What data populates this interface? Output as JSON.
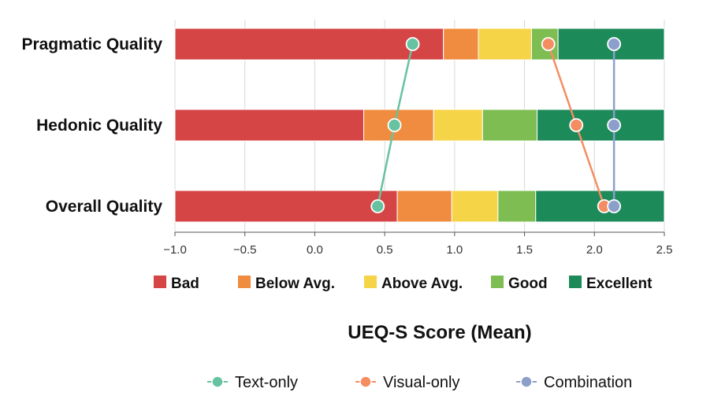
{
  "chart_data": {
    "type": "bar",
    "orientation": "horizontal-stacked",
    "xlabel": "UEQ-S Score (Mean)",
    "xlim": [
      -1.0,
      2.5
    ],
    "xticks": [
      -1.0,
      -0.5,
      0.0,
      0.5,
      1.0,
      1.5,
      2.0,
      2.5
    ],
    "xtick_labels": [
      "−1.0",
      "−0.5",
      "0.0",
      "0.5",
      "1.0",
      "1.5",
      "2.0",
      "2.5"
    ],
    "grid": "vertical",
    "categories": [
      "Pragmatic Quality",
      "Hedonic Quality",
      "Overall Quality"
    ],
    "benchmark_bands": [
      {
        "name": "Bad",
        "color": "#d64545",
        "ranges": [
          [
            -1.0,
            0.92
          ],
          [
            -1.0,
            0.35
          ],
          [
            -1.0,
            0.59
          ]
        ]
      },
      {
        "name": "Below Avg.",
        "color": "#f08c3f",
        "ranges": [
          [
            0.92,
            1.17
          ],
          [
            0.35,
            0.85
          ],
          [
            0.59,
            0.98
          ]
        ]
      },
      {
        "name": "Above Avg.",
        "color": "#f5d447",
        "ranges": [
          [
            1.17,
            1.55
          ],
          [
            0.85,
            1.2
          ],
          [
            0.98,
            1.31
          ]
        ]
      },
      {
        "name": "Good",
        "color": "#7dbd52",
        "ranges": [
          [
            1.55,
            1.74
          ],
          [
            1.2,
            1.59
          ],
          [
            1.31,
            1.58
          ]
        ]
      },
      {
        "name": "Excellent",
        "color": "#1d8a5a",
        "ranges": [
          [
            1.74,
            2.5
          ],
          [
            1.59,
            2.5
          ],
          [
            1.58,
            2.5
          ]
        ]
      }
    ],
    "series": [
      {
        "name": "Text-only",
        "color": "#66c2a0",
        "values": [
          0.7,
          0.57,
          0.45
        ]
      },
      {
        "name": "Visual-only",
        "color": "#f58d62",
        "values": [
          1.67,
          1.87,
          2.07
        ]
      },
      {
        "name": "Combination",
        "color": "#8c9fcb",
        "values": [
          2.14,
          2.14,
          2.14
        ]
      }
    ],
    "band_legend_placement": "bottom",
    "series_legend_placement": "bottom"
  }
}
